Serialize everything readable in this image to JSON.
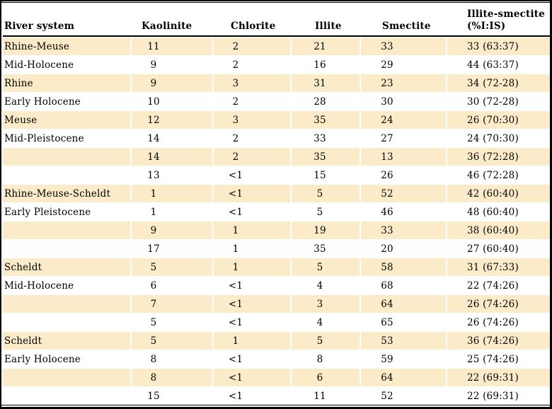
{
  "table": {
    "columns": [
      {
        "label": "River system"
      },
      {
        "label": "Kaolinite"
      },
      {
        "label": "Chlorite"
      },
      {
        "label": "Illite"
      },
      {
        "label": "Smectite"
      },
      {
        "label": "Illite-smectite",
        "sublabel": "(%I:IS)"
      }
    ],
    "rows": [
      [
        "Rhine-Meuse",
        "11",
        "2",
        "21",
        "33",
        "33 (63:37)"
      ],
      [
        "Mid-Holocene",
        "9",
        "2",
        "16",
        "29",
        "44 (63:37)"
      ],
      [
        "Rhine",
        "9",
        "3",
        "31",
        "23",
        "34 (72-28)"
      ],
      [
        "Early Holocene",
        "10",
        "2",
        "28",
        "30",
        "30 (72-28)"
      ],
      [
        "Meuse",
        "12",
        "3",
        "35",
        "24",
        "26 (70:30)"
      ],
      [
        "Mid-Pleistocene",
        "14",
        "2",
        "33",
        "27",
        "24 (70:30)"
      ],
      [
        "",
        "14",
        "2",
        "35",
        "13",
        "36 (72:28)"
      ],
      [
        "",
        "13",
        "<1",
        "15",
        "26",
        "46 (72:28)"
      ],
      [
        "Rhine-Meuse-Scheldt",
        "1",
        "<1",
        "5",
        "52",
        "42 (60:40)"
      ],
      [
        "Early Pleistocene",
        "1",
        "<1",
        "5",
        "46",
        "48 (60:40)"
      ],
      [
        "",
        "9",
        "1",
        "19",
        "33",
        "38 (60:40)"
      ],
      [
        "",
        "17",
        "1",
        "35",
        "20",
        "27 (60:40)"
      ],
      [
        "Scheldt",
        "5",
        "1",
        "5",
        "58",
        "31 (67:33)"
      ],
      [
        "Mid-Holocene",
        "6",
        "<1",
        "4",
        "68",
        "22 (74:26)"
      ],
      [
        "",
        "7",
        "<1",
        "3",
        "64",
        "26 (74:26)"
      ],
      [
        "",
        "5",
        "<1",
        "4",
        "65",
        "26 (74:26)"
      ],
      [
        "Scheldt",
        "5",
        "1",
        "5",
        "53",
        "36 (74:26)"
      ],
      [
        "Early Holocene",
        "8",
        "<1",
        "8",
        "59",
        "25 (74:26)"
      ],
      [
        "",
        "8",
        "<1",
        "6",
        "64",
        "22 (69:31)"
      ],
      [
        "",
        "15",
        "<1",
        "11",
        "52",
        "22 (69:31)"
      ]
    ]
  },
  "colors": {
    "row_shade": "#FBEBC8",
    "border": "#000000",
    "background": "#FFFFFF",
    "text": "#000000"
  }
}
